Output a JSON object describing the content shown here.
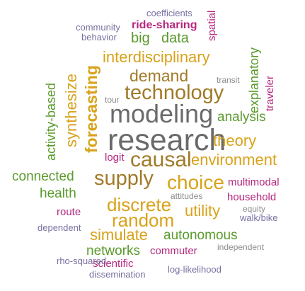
{
  "palette": {
    "gray": "#6a6a6a",
    "olive": "#a17a28",
    "gold": "#d8a21a",
    "green": "#5a9a2c",
    "magenta": "#b5277f",
    "purple": "#7a6fa0",
    "lightpurple": "#8b82ad",
    "lightgray": "#8c8c8c"
  },
  "words": [
    {
      "id": "coefficients",
      "text": "coefficients"
    },
    {
      "id": "community",
      "text": "community"
    },
    {
      "id": "ride-sharing",
      "text": "ride-sharing"
    },
    {
      "id": "spatial",
      "text": "spatial"
    },
    {
      "id": "behavior",
      "text": "behavior"
    },
    {
      "id": "big",
      "text": "big"
    },
    {
      "id": "data",
      "text": "data"
    },
    {
      "id": "forecasting",
      "text": "forecasting"
    },
    {
      "id": "activity-based",
      "text": "activity-based"
    },
    {
      "id": "interdisciplinary",
      "text": "interdisciplinary"
    },
    {
      "id": "explanatory",
      "text": "explanatory"
    },
    {
      "id": "traveler",
      "text": "traveler"
    },
    {
      "id": "demand",
      "text": "demand"
    },
    {
      "id": "transit",
      "text": "transit"
    },
    {
      "id": "synthesize",
      "text": "synthesize"
    },
    {
      "id": "technology",
      "text": "technology"
    },
    {
      "id": "tour",
      "text": "tour"
    },
    {
      "id": "modeling",
      "text": "modeling"
    },
    {
      "id": "analysis",
      "text": "analysis"
    },
    {
      "id": "research",
      "text": "research"
    },
    {
      "id": "theory",
      "text": "theory"
    },
    {
      "id": "logit",
      "text": "logit"
    },
    {
      "id": "causal",
      "text": "causal"
    },
    {
      "id": "environment",
      "text": "environment"
    },
    {
      "id": "connected",
      "text": "connected"
    },
    {
      "id": "supply",
      "text": "supply"
    },
    {
      "id": "choice",
      "text": "choice"
    },
    {
      "id": "multimodal",
      "text": "multimodal"
    },
    {
      "id": "health",
      "text": "health"
    },
    {
      "id": "attitudes",
      "text": "attitudes"
    },
    {
      "id": "household",
      "text": "household"
    },
    {
      "id": "discrete",
      "text": "discrete"
    },
    {
      "id": "utility",
      "text": "utility"
    },
    {
      "id": "route",
      "text": "route"
    },
    {
      "id": "random",
      "text": "random"
    },
    {
      "id": "equity",
      "text": "equity"
    },
    {
      "id": "walk-bike",
      "text": "walk/bike"
    },
    {
      "id": "dependent",
      "text": "dependent"
    },
    {
      "id": "simulate",
      "text": "simulate"
    },
    {
      "id": "autonomous",
      "text": "autonomous"
    },
    {
      "id": "networks",
      "text": "networks"
    },
    {
      "id": "commuter",
      "text": "commuter"
    },
    {
      "id": "independent",
      "text": "independent"
    },
    {
      "id": "scientific",
      "text": "scientific"
    },
    {
      "id": "rho-squared",
      "text": "rho-squared"
    },
    {
      "id": "dissemination",
      "text": "dissemination"
    },
    {
      "id": "log-likelihood",
      "text": "log-likelihood"
    }
  ]
}
